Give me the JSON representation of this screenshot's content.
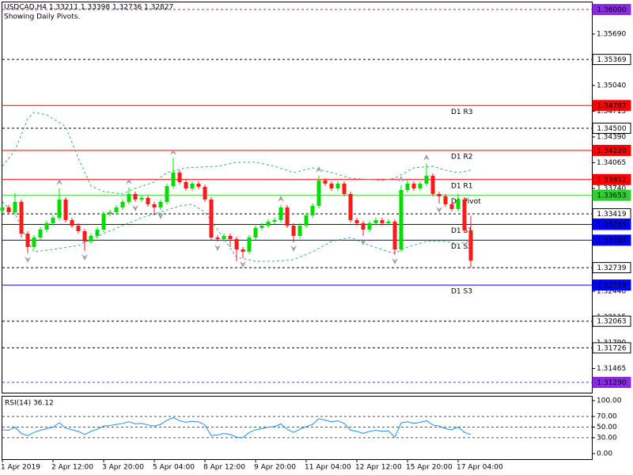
{
  "chart_data": [
    {
      "type": "candlestick",
      "title": "USDCAD,H4 1.33211 1.33398 1.32736 1.32827",
      "subtitle": "Showing Daily Pivots.",
      "categories": [
        "1 Apr 2019",
        null,
        null,
        null,
        null,
        null,
        null,
        null,
        "2 Apr 12:00",
        null,
        null,
        null,
        null,
        null,
        null,
        null,
        "3 Apr 20:00",
        null,
        null,
        null,
        null,
        null,
        null,
        null,
        "5 Apr 04:00",
        null,
        null,
        null,
        null,
        null,
        null,
        null,
        "8 Apr 12:00",
        null,
        null,
        null,
        null,
        null,
        null,
        null,
        "9 Apr 20:00",
        null,
        null,
        null,
        null,
        null,
        null,
        null,
        "11 Apr 04:00",
        null,
        null,
        null,
        null,
        null,
        null,
        null,
        "12 Apr 12:00",
        null,
        null,
        null,
        null,
        null,
        null,
        null,
        "15 Apr 20:00",
        null,
        null,
        null,
        null,
        null,
        null,
        null,
        "17 Apr 04:00",
        null,
        null
      ],
      "open": [
        1.3346,
        1.335,
        1.3344,
        1.3357,
        1.3317,
        1.33,
        1.3312,
        1.3322,
        1.333,
        1.3337,
        1.336,
        1.3334,
        1.3327,
        1.332,
        1.3307,
        1.3314,
        1.3322,
        1.3342,
        1.3344,
        1.335,
        1.3357,
        1.3367,
        1.336,
        1.3362,
        1.3354,
        1.335,
        1.3357,
        1.3377,
        1.3394,
        1.3382,
        1.3374,
        1.338,
        1.3376,
        1.336,
        1.3312,
        1.331,
        1.3314,
        1.331,
        1.3297,
        1.3294,
        1.3312,
        1.3324,
        1.3327,
        1.3332,
        1.3334,
        1.335,
        1.3327,
        1.3314,
        1.3327,
        1.334,
        1.3352,
        1.3384,
        1.338,
        1.3374,
        1.338,
        1.3367,
        1.3334,
        1.333,
        1.3322,
        1.333,
        1.3334,
        1.333,
        1.3332,
        1.3297,
        1.3372,
        1.338,
        1.3374,
        1.338,
        1.339,
        1.3367,
        1.3364,
        1.3354,
        1.3348,
        1.336,
        1.33211
      ],
      "high": [
        1.3353,
        1.3353,
        1.3368,
        1.336,
        1.332,
        1.3315,
        1.3325,
        1.3333,
        1.334,
        1.3374,
        1.3363,
        1.3337,
        1.333,
        1.3323,
        1.3317,
        1.3325,
        1.3345,
        1.3347,
        1.3353,
        1.336,
        1.3375,
        1.337,
        1.3365,
        1.3365,
        1.3357,
        1.336,
        1.338,
        1.3412,
        1.3397,
        1.3385,
        1.3383,
        1.3383,
        1.3379,
        1.3363,
        1.3315,
        1.3317,
        1.3317,
        1.3313,
        1.33,
        1.3315,
        1.3327,
        1.333,
        1.3335,
        1.3337,
        1.3353,
        1.3353,
        1.333,
        1.333,
        1.3343,
        1.3355,
        1.339,
        1.3387,
        1.3383,
        1.3383,
        1.3383,
        1.337,
        1.3337,
        1.3333,
        1.3333,
        1.3337,
        1.3337,
        1.3335,
        1.3335,
        1.3378,
        1.3385,
        1.3383,
        1.3383,
        1.3405,
        1.3393,
        1.337,
        1.3367,
        1.3357,
        1.3367,
        1.3363,
        1.33398
      ],
      "low": [
        1.3343,
        1.3341,
        1.3341,
        1.3312,
        1.3292,
        1.3297,
        1.3309,
        1.3319,
        1.3327,
        1.3334,
        1.3331,
        1.3324,
        1.3317,
        1.3295,
        1.3304,
        1.3311,
        1.3319,
        1.3339,
        1.3341,
        1.3347,
        1.3354,
        1.3357,
        1.3357,
        1.3351,
        1.334,
        1.3347,
        1.3354,
        1.3374,
        1.3379,
        1.3371,
        1.3371,
        1.3373,
        1.3357,
        1.3309,
        1.3307,
        1.3307,
        1.33,
        1.3282,
        1.3286,
        1.3291,
        1.3309,
        1.3321,
        1.3324,
        1.3329,
        1.3331,
        1.3324,
        1.3306,
        1.3311,
        1.3324,
        1.3337,
        1.3349,
        1.3377,
        1.3371,
        1.3371,
        1.3364,
        1.3331,
        1.3327,
        1.3314,
        1.3319,
        1.3327,
        1.3327,
        1.3327,
        1.329,
        1.3294,
        1.3369,
        1.3371,
        1.3371,
        1.3377,
        1.3364,
        1.3355,
        1.3351,
        1.3345,
        1.3345,
        1.3318,
        1.32736
      ],
      "close": [
        1.335,
        1.3344,
        1.3357,
        1.3317,
        1.33,
        1.3312,
        1.3322,
        1.333,
        1.3337,
        1.336,
        1.3334,
        1.3327,
        1.332,
        1.3307,
        1.3314,
        1.3322,
        1.3342,
        1.3344,
        1.335,
        1.3357,
        1.3367,
        1.336,
        1.3362,
        1.3354,
        1.335,
        1.3357,
        1.3377,
        1.3394,
        1.3382,
        1.3374,
        1.338,
        1.3376,
        1.336,
        1.3312,
        1.331,
        1.3314,
        1.331,
        1.3297,
        1.3294,
        1.3312,
        1.3324,
        1.3327,
        1.3332,
        1.3334,
        1.335,
        1.3327,
        1.3314,
        1.3327,
        1.334,
        1.3352,
        1.3384,
        1.338,
        1.3374,
        1.338,
        1.3367,
        1.3334,
        1.333,
        1.3322,
        1.333,
        1.3334,
        1.333,
        1.3332,
        1.3297,
        1.3372,
        1.338,
        1.3374,
        1.338,
        1.339,
        1.3367,
        1.3364,
        1.3354,
        1.3348,
        1.336,
        1.33211,
        1.32827
      ],
      "up_color": "#00dd00",
      "down_color": "#ff1a1a",
      "ylim": [
        1.3116,
        1.361
      ],
      "yticks": [
        {
          "value": 1.3569,
          "label": "1.35690"
        },
        {
          "value": 1.3504,
          "label": "1.35040"
        },
        1.34715,
        {
          "value": 1.3439,
          "label": "1.34390"
        },
        1.34065,
        {
          "value": 1.3374,
          "label": "1.33740"
        },
        {
          "value": 1.3244,
          "label": "1.32440"
        },
        1.32115,
        {
          "value": 1.3179,
          "label": "1.31790"
        },
        1.31465
      ],
      "levels": [
        {
          "value": 1.36,
          "label": "1.36000",
          "color": "#8a2be2",
          "dash": true
        },
        {
          "value": 1.35369,
          "label": "1.35369",
          "color": "#000000",
          "dash": true
        },
        {
          "value": 1.34787,
          "label": "1.34787",
          "color": "#ff0000",
          "dash": false,
          "text": "D1 R3"
        },
        {
          "value": 1.345,
          "label": "1.34500",
          "color": "#000000",
          "dash": true
        },
        {
          "value": 1.3422,
          "label": "1.34220",
          "color": "#ff0000",
          "dash": false,
          "text": "D1 R2"
        },
        {
          "value": 1.33852,
          "label": "1.33852",
          "color": "#ff0000",
          "dash": false,
          "text": "D1 R1"
        },
        {
          "value": 1.33653,
          "label": "1.33653",
          "color": "#32cd32",
          "dash": false,
          "text": "D1 Pivot"
        },
        {
          "value": 1.33419,
          "label": "1.33419",
          "color": "#000000",
          "dash": true
        },
        {
          "value": 1.33285,
          "label": "1.33285",
          "color": "#0000ff",
          "dash": false,
          "text": "D1 S1"
        },
        {
          "value": 1.33086,
          "label": "1.33086",
          "color": "#0000ff",
          "dash": false,
          "text": "D1 S2"
        },
        {
          "value": 1.32739,
          "label": "1.32739",
          "color": "#000000",
          "dash": true
        },
        {
          "value": 1.32519,
          "label": "1.32519",
          "color": "#0000ff",
          "dash": false,
          "text": "D1 S3"
        },
        {
          "value": 1.32063,
          "label": "1.32063",
          "color": "#000000",
          "dash": true
        },
        {
          "value": 1.31726,
          "label": "1.31726",
          "color": "#000000",
          "dash": true
        },
        {
          "value": 1.3129,
          "label": "1.31290",
          "color": "#8a2be2",
          "dash": true
        }
      ],
      "bands": [
        {
          "color": "#3cb371",
          "x": [
            0,
            2,
            4,
            5,
            7,
            10,
            12,
            14,
            16,
            19,
            21,
            24,
            26,
            29,
            34,
            37,
            40,
            43,
            46,
            49,
            52,
            55,
            60,
            62,
            65,
            68,
            70,
            72,
            74
          ],
          "values": [
            1.3402,
            1.3422,
            1.3462,
            1.347,
            1.3467,
            1.3452,
            1.3412,
            1.3377,
            1.337,
            1.3367,
            1.3374,
            1.3382,
            1.3394,
            1.34,
            1.3402,
            1.3407,
            1.3407,
            1.3402,
            1.3394,
            1.34,
            1.3394,
            1.3387,
            1.3384,
            1.3387,
            1.34,
            1.3402,
            1.3397,
            1.3394,
            1.3397
          ]
        },
        {
          "color": "#3cb371",
          "x": [
            0,
            2,
            4,
            5,
            8,
            12,
            16,
            19,
            22,
            25,
            28,
            30,
            32,
            34,
            37,
            40,
            43,
            46,
            49,
            52,
            55,
            58,
            61,
            62,
            64,
            67,
            70,
            72,
            74
          ],
          "values": [
            1.3357,
            1.3342,
            1.3307,
            1.3294,
            1.3297,
            1.3302,
            1.3317,
            1.3327,
            1.3337,
            1.3344,
            1.3352,
            1.3354,
            1.3344,
            1.3322,
            1.3287,
            1.3282,
            1.3282,
            1.3284,
            1.3294,
            1.3307,
            1.3312,
            1.3302,
            1.3294,
            1.3292,
            1.33,
            1.3307,
            1.3307,
            1.3304,
            1.3307
          ]
        }
      ],
      "fractals_up": [
        9,
        20,
        27,
        44,
        50,
        63,
        67
      ],
      "fractals_down": [
        4,
        13,
        21,
        25,
        34,
        38,
        46,
        57,
        62,
        69
      ],
      "fractal_color": "#a0a0a0"
    },
    {
      "type": "line",
      "title": "RSI(14) 36.12",
      "values": [
        45,
        44,
        50,
        38,
        34,
        40,
        44,
        47,
        50,
        58,
        48,
        45,
        42,
        36,
        42,
        46,
        52,
        53,
        55,
        57,
        60,
        56,
        57,
        54,
        52,
        55,
        63,
        68,
        62,
        59,
        61,
        60,
        54,
        34,
        35,
        38,
        36,
        31,
        30,
        40,
        45,
        47,
        50,
        51,
        56,
        46,
        40,
        46,
        51,
        55,
        66,
        63,
        60,
        62,
        57,
        44,
        42,
        38,
        42,
        44,
        42,
        43,
        31,
        58,
        60,
        57,
        59,
        62,
        54,
        52,
        47,
        45,
        50,
        40,
        36.12
      ],
      "color": "#1e90ff",
      "ylim": [
        -10.5,
        109
      ],
      "yticks": [
        {
          "value": 0,
          "label": "0.00"
        },
        {
          "value": 30,
          "label": "30.00"
        },
        {
          "value": 50,
          "label": "50.00"
        },
        {
          "value": 70,
          "label": "70.00"
        },
        {
          "value": 100,
          "label": "100.00"
        }
      ],
      "dashed_grid": true
    }
  ]
}
